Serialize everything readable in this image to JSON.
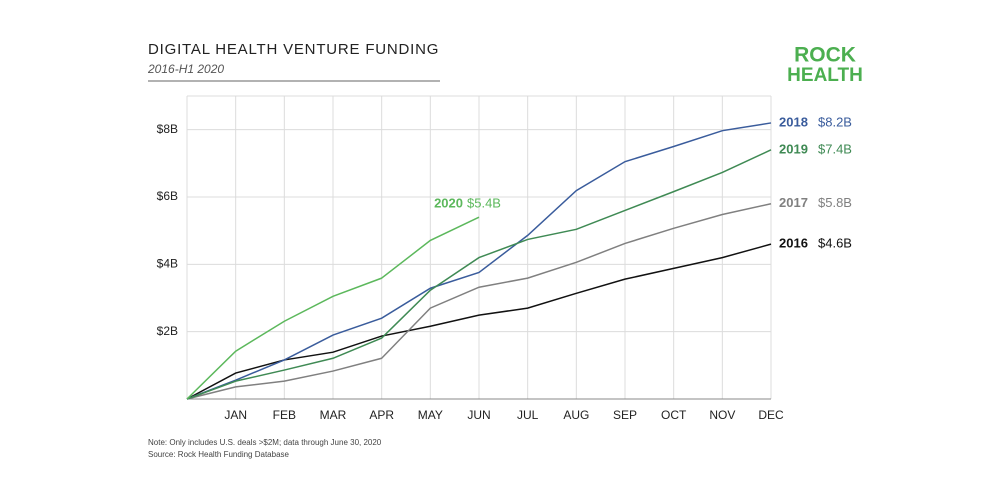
{
  "chart_data": {
    "type": "line",
    "title": "DIGITAL HEALTH VENTURE FUNDING",
    "subtitle": "2016-H1 2020",
    "logo": [
      "ROCK",
      "HEALTH"
    ],
    "notes": [
      "Note: Only includes U.S. deals >$2M; data through June 30, 2020",
      "Source: Rock Health Funding Database"
    ],
    "categories": [
      null,
      "JAN",
      "FEB",
      "MAR",
      "APR",
      "MAY",
      "JUN",
      "JUL",
      "AUG",
      "SEP",
      "OCT",
      "NOV",
      "DEC"
    ],
    "ylim": [
      0,
      9
    ],
    "yticks": [
      {
        "value": 2,
        "label": "$2B"
      },
      {
        "value": 4,
        "label": "$4B"
      },
      {
        "value": 6,
        "label": "$6B"
      },
      {
        "value": 8,
        "label": "$8B"
      }
    ],
    "grid": true,
    "series": [
      {
        "name": "2016",
        "color": "#111111",
        "values": [
          0,
          0.77,
          1.16,
          1.39,
          1.87,
          2.16,
          2.49,
          2.7,
          3.14,
          3.56,
          3.88,
          4.2,
          4.6
        ],
        "value_labels": [
          null,
          null,
          null,
          null,
          null,
          null,
          null,
          null,
          null,
          null,
          null,
          null,
          "$4.6B"
        ]
      },
      {
        "name": "2017",
        "color": "#808080",
        "values": [
          0,
          0.36,
          0.53,
          0.83,
          1.21,
          2.7,
          3.32,
          3.59,
          4.06,
          4.62,
          5.07,
          5.48,
          5.8
        ],
        "value_labels": [
          null,
          null,
          null,
          null,
          null,
          null,
          null,
          null,
          null,
          null,
          null,
          null,
          "$5.8B"
        ]
      },
      {
        "name": "2018",
        "color": "#3a5c9c",
        "values": [
          0,
          0.56,
          1.16,
          1.9,
          2.4,
          3.29,
          3.76,
          4.86,
          6.19,
          7.05,
          7.5,
          7.97,
          8.2
        ],
        "value_labels": [
          null,
          null,
          null,
          null,
          null,
          null,
          null,
          null,
          null,
          null,
          null,
          null,
          "$8.2B"
        ]
      },
      {
        "name": "2019",
        "color": "#3f8a54",
        "values": [
          0,
          0.53,
          0.86,
          1.21,
          1.81,
          3.23,
          4.2,
          4.74,
          5.04,
          5.6,
          6.16,
          6.73,
          7.4
        ],
        "value_labels": [
          null,
          null,
          null,
          null,
          null,
          null,
          null,
          null,
          null,
          null,
          null,
          null,
          "$7.4B"
        ]
      },
      {
        "name": "2020",
        "color": "#5cb85c",
        "values": [
          0,
          1.42,
          2.31,
          3.05,
          3.59,
          4.71,
          5.4,
          null,
          null,
          null,
          null,
          null,
          null
        ],
        "value_labels": [
          null,
          null,
          null,
          null,
          null,
          null,
          "$5.4B",
          null,
          null,
          null,
          null,
          null,
          null
        ]
      }
    ]
  }
}
